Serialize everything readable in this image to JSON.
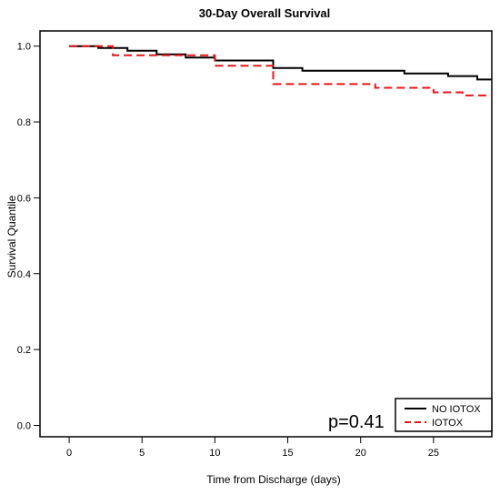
{
  "chart_data": {
    "type": "line",
    "title": "30-Day Overall Survival",
    "xlabel": "Time from Discharge (days)",
    "ylabel": "Survival Quantile",
    "xlim": [
      -2,
      29
    ],
    "ylim": [
      -0.03,
      1.04
    ],
    "xticks": [
      0,
      5,
      10,
      15,
      20,
      25
    ],
    "yticks": [
      "0.0",
      "0.2",
      "0.4",
      "0.6",
      "0.8",
      "1.0"
    ],
    "annotation": "p=0.41",
    "legend_position": "bottom-right",
    "series": [
      {
        "name": "NO IOTOX",
        "color": "#000000",
        "dashed": false,
        "steps": [
          [
            0,
            1.0
          ],
          [
            2,
            0.995
          ],
          [
            4,
            0.988
          ],
          [
            6,
            0.978
          ],
          [
            8,
            0.97
          ],
          [
            10,
            0.962
          ],
          [
            14,
            0.942
          ],
          [
            16,
            0.935
          ],
          [
            23,
            0.928
          ],
          [
            26,
            0.921
          ],
          [
            28,
            0.912
          ],
          [
            29,
            0.912
          ]
        ]
      },
      {
        "name": "IOTOX",
        "color": "#e8141b",
        "dashed": true,
        "steps": [
          [
            0,
            1.0
          ],
          [
            3,
            0.976
          ],
          [
            10,
            0.948
          ],
          [
            14,
            0.9
          ],
          [
            21,
            0.89
          ],
          [
            25,
            0.878
          ],
          [
            27,
            0.87
          ],
          [
            29,
            0.87
          ]
        ]
      }
    ]
  }
}
